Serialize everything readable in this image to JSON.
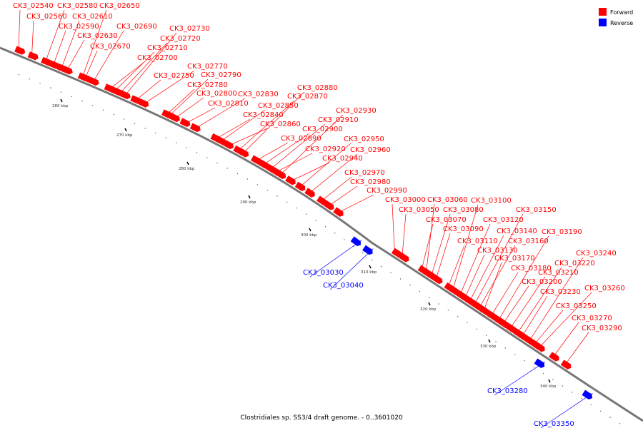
{
  "caption": "Clostridiales sp. SS3/4 draft genome. - 0..3601020",
  "legend": [
    {
      "label": "Forward",
      "color": "#ff0000"
    },
    {
      "label": "Reverse",
      "color": "#0000ff"
    }
  ],
  "colors": {
    "forward": "#ff0000",
    "reverse": "#0000ff",
    "backbone": "#777777"
  },
  "scale_ticks": [
    "260 kbp",
    "270 kbp",
    "280 kbp",
    "290 kbp",
    "300 kbp",
    "310 kbp",
    "320 kbp",
    "330 kbp",
    "340 kbp"
  ],
  "genes": [
    {
      "id": "CK3_02540",
      "strand": "forward"
    },
    {
      "id": "CK3_02560",
      "strand": "forward"
    },
    {
      "id": "CK3_02580",
      "strand": "forward"
    },
    {
      "id": "CK3_02610",
      "strand": "forward"
    },
    {
      "id": "CK3_02590",
      "strand": "forward"
    },
    {
      "id": "CK3_02650",
      "strand": "forward"
    },
    {
      "id": "CK3_02630",
      "strand": "forward"
    },
    {
      "id": "CK3_02690",
      "strand": "forward"
    },
    {
      "id": "CK3_02670",
      "strand": "forward"
    },
    {
      "id": "CK3_02730",
      "strand": "forward"
    },
    {
      "id": "CK3_02720",
      "strand": "forward"
    },
    {
      "id": "CK3_02710",
      "strand": "forward"
    },
    {
      "id": "CK3_02700",
      "strand": "forward"
    },
    {
      "id": "CK3_02770",
      "strand": "forward"
    },
    {
      "id": "CK3_02750",
      "strand": "forward"
    },
    {
      "id": "CK3_02790",
      "strand": "forward"
    },
    {
      "id": "CK3_02780",
      "strand": "forward"
    },
    {
      "id": "CK3_02800",
      "strand": "forward"
    },
    {
      "id": "CK3_02830",
      "strand": "forward"
    },
    {
      "id": "CK3_02810",
      "strand": "forward"
    },
    {
      "id": "CK3_02880",
      "strand": "forward"
    },
    {
      "id": "CK3_02870",
      "strand": "forward"
    },
    {
      "id": "CK3_02850",
      "strand": "forward"
    },
    {
      "id": "CK3_02840",
      "strand": "forward"
    },
    {
      "id": "CK3_02860",
      "strand": "forward"
    },
    {
      "id": "CK3_02930",
      "strand": "forward"
    },
    {
      "id": "CK3_02910",
      "strand": "forward"
    },
    {
      "id": "CK3_02900",
      "strand": "forward"
    },
    {
      "id": "CK3_02890",
      "strand": "forward"
    },
    {
      "id": "CK3_02950",
      "strand": "forward"
    },
    {
      "id": "CK3_02920",
      "strand": "forward"
    },
    {
      "id": "CK3_02960",
      "strand": "forward"
    },
    {
      "id": "CK3_02940",
      "strand": "forward"
    },
    {
      "id": "CK3_02970",
      "strand": "forward"
    },
    {
      "id": "CK3_02980",
      "strand": "forward"
    },
    {
      "id": "CK3_02990",
      "strand": "forward"
    },
    {
      "id": "CK3_03000",
      "strand": "forward"
    },
    {
      "id": "CK3_03060",
      "strand": "forward"
    },
    {
      "id": "CK3_03100",
      "strand": "forward"
    },
    {
      "id": "CK3_03050",
      "strand": "forward"
    },
    {
      "id": "CK3_03080",
      "strand": "forward"
    },
    {
      "id": "CK3_03150",
      "strand": "forward"
    },
    {
      "id": "CK3_03070",
      "strand": "forward"
    },
    {
      "id": "CK3_03120",
      "strand": "forward"
    },
    {
      "id": "CK3_03090",
      "strand": "forward"
    },
    {
      "id": "CK3_03140",
      "strand": "forward"
    },
    {
      "id": "CK3_03190",
      "strand": "forward"
    },
    {
      "id": "CK3_03110",
      "strand": "forward"
    },
    {
      "id": "CK3_03160",
      "strand": "forward"
    },
    {
      "id": "CK3_03130",
      "strand": "forward"
    },
    {
      "id": "CK3_03170",
      "strand": "forward"
    },
    {
      "id": "CK3_03240",
      "strand": "forward"
    },
    {
      "id": "CK3_03180",
      "strand": "forward"
    },
    {
      "id": "CK3_03220",
      "strand": "forward"
    },
    {
      "id": "CK3_03210",
      "strand": "forward"
    },
    {
      "id": "CK3_03200",
      "strand": "forward"
    },
    {
      "id": "CK3_03260",
      "strand": "forward"
    },
    {
      "id": "CK3_03230",
      "strand": "forward"
    },
    {
      "id": "CK3_03250",
      "strand": "forward"
    },
    {
      "id": "CK3_03270",
      "strand": "forward"
    },
    {
      "id": "CK3_03290",
      "strand": "forward"
    },
    {
      "id": "CK3_03030",
      "strand": "reverse"
    },
    {
      "id": "CK3_03040",
      "strand": "reverse"
    },
    {
      "id": "CK3_03280",
      "strand": "reverse"
    },
    {
      "id": "CK3_03350",
      "strand": "reverse"
    }
  ]
}
